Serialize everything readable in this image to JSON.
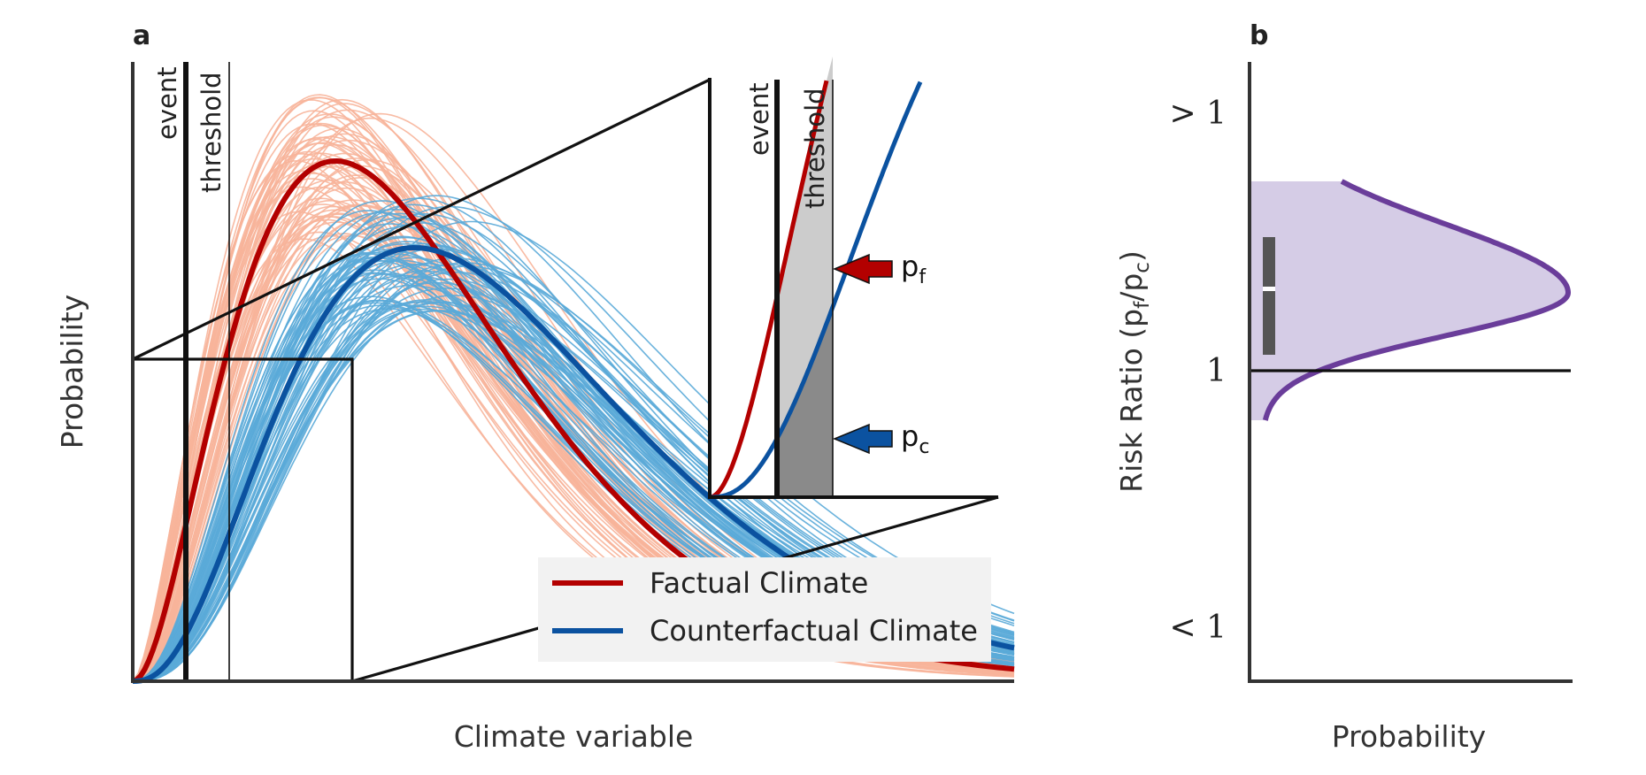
{
  "chart_data": [
    {
      "panel": "a",
      "type": "line",
      "xlabel": "Climate variable",
      "ylabel": "Probability",
      "grid": false,
      "xlim": [
        0,
        10
      ],
      "ylim": [
        0,
        1
      ],
      "vertical_lines": [
        {
          "label": "event",
          "x": 0.6
        },
        {
          "label": "threshold",
          "x": 1.1
        }
      ],
      "series": [
        {
          "name": "Factual Climate",
          "color": "#b30000",
          "ensemble_color": "#f7b49a",
          "distribution": {
            "shape": 3.0,
            "scale": 1.15
          },
          "peak_y": 0.84
        },
        {
          "name": "Counterfactual Climate",
          "color": "#0b52a0",
          "ensemble_color": "#5aaad8",
          "distribution": {
            "shape": 3.6,
            "scale": 1.23
          },
          "peak_y": 0.7
        }
      ],
      "legend": {
        "position": "lower-right",
        "entries": [
          "Factual Climate",
          "Counterfactual Climate"
        ]
      },
      "zoom_region": {
        "x": [
          0,
          2.5
        ],
        "y": [
          0,
          0.5
        ]
      },
      "inset": {
        "vertical_lines": [
          "event",
          "threshold"
        ],
        "annotations": [
          {
            "label": "p",
            "sub": "f",
            "color": "#b30000"
          },
          {
            "label": "p",
            "sub": "c",
            "color": "#0b52a0"
          }
        ]
      }
    },
    {
      "panel": "b",
      "type": "area",
      "xlabel": "Probability",
      "ylabel": "Risk Ratio (p",
      "ylabel_sub1": "f",
      "ylabel_mid": "/p",
      "ylabel_sub2": "c",
      "ylabel_end": ")",
      "ytick_labels": [
        {
          "text": "> 1",
          "pos": "top"
        },
        {
          "text": "1",
          "pos": "middle"
        },
        {
          "text": "< 1",
          "pos": "bottom"
        }
      ],
      "reference_line": "1",
      "distribution": {
        "color": "#6a3d9a",
        "fill": "#d5cce6",
        "peak_ratio": 1.3,
        "spread": 0.2
      },
      "box": {
        "color": "#555555",
        "median_color": "#ffffff"
      }
    }
  ]
}
